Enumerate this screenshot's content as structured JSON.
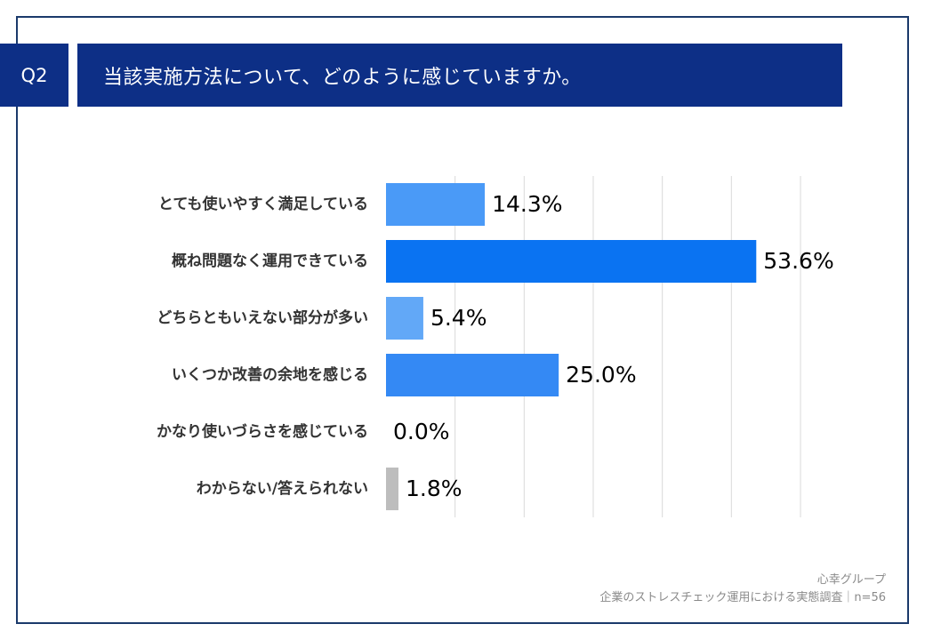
{
  "question": {
    "badge": "Q2",
    "title": "当該実施方法について、どのように感じていますか。"
  },
  "chart_data": {
    "type": "bar",
    "orientation": "horizontal",
    "title": "当該実施方法について、どのように感じていますか。",
    "categories": [
      "とても使いやすく満足している",
      "概ね問題なく運用できている",
      "どちらともいえない部分が多い",
      "いくつか改善の余地を感じる",
      "かなり使いづらさを感じている",
      "わからない/答えられない"
    ],
    "values": [
      14.3,
      53.6,
      5.4,
      25.0,
      0.0,
      1.8
    ],
    "value_labels": [
      "14.3%",
      "53.6%",
      "5.4%",
      "25.0%",
      "0.0%",
      "1.8%"
    ],
    "bar_colors": [
      "#4a9af7",
      "#0a73f2",
      "#62a8f7",
      "#3489f4",
      "#6aaef7",
      "#bdbdbd"
    ],
    "xlim": [
      0,
      60
    ],
    "grid_step": 10,
    "grid": true,
    "xlabel": "",
    "ylabel": ""
  },
  "source": {
    "org": "心幸グループ",
    "survey": "企業のストレスチェック運用における実態調査｜n=56"
  }
}
